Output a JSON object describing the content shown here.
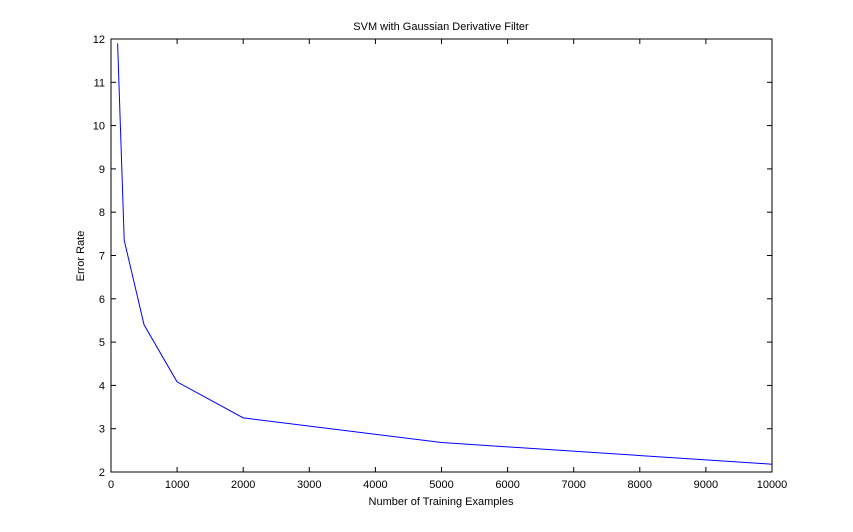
{
  "chart_data": {
    "type": "line",
    "title": "SVM with Gaussian Derivative Filter",
    "xlabel": "Number of Training Examples",
    "ylabel": "Error Rate",
    "xlim": [
      0,
      10000
    ],
    "ylim": [
      2,
      12
    ],
    "xticks": [
      0,
      1000,
      2000,
      3000,
      4000,
      5000,
      6000,
      7000,
      8000,
      9000,
      10000
    ],
    "yticks": [
      2,
      3,
      4,
      5,
      6,
      7,
      8,
      9,
      10,
      11,
      12
    ],
    "grid": false,
    "series": [
      {
        "color": "#0000ff",
        "x": [
          100,
          200,
          500,
          1000,
          2000,
          5000,
          10000
        ],
        "y": [
          11.9,
          7.35,
          5.4,
          4.08,
          3.25,
          2.68,
          2.18
        ]
      }
    ]
  }
}
